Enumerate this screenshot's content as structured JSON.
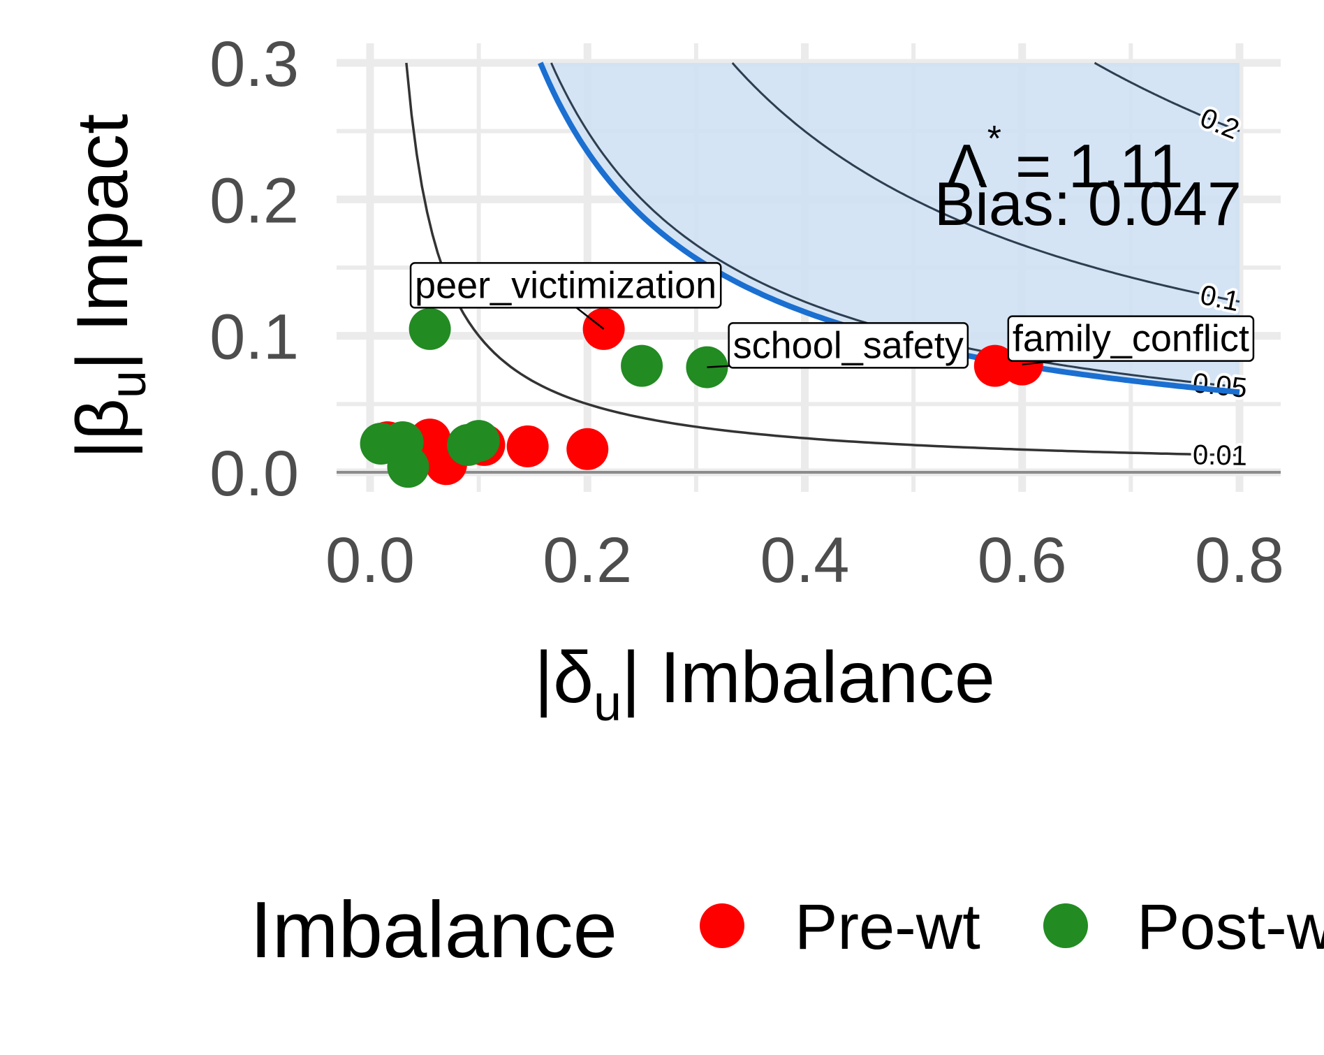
{
  "chart_data": {
    "type": "scatter",
    "xlim": [
      0,
      0.8
    ],
    "ylim": [
      0,
      0.3
    ],
    "x_ticks": [
      "0.0",
      "0.2",
      "0.4",
      "0.6",
      "0.8"
    ],
    "y_ticks": [
      "0.0",
      "0.1",
      "0.2",
      "0.3"
    ],
    "xlabel": {
      "delim": "|",
      "symbol": "δ",
      "sub": "u",
      "text": "Imbalance"
    },
    "ylabel": {
      "delim": "|",
      "symbol": "β",
      "sub": "u",
      "text": "Impact"
    },
    "grid": true,
    "legend": {
      "title": "Imbalance",
      "position": "bottom",
      "entries": [
        {
          "label": "Pre-wt",
          "color": "#ff0000"
        },
        {
          "label": "Post-w",
          "color": "#228b22"
        }
      ]
    },
    "contours": [
      {
        "level": 0.01,
        "label": "0.01",
        "color": "#333333"
      },
      {
        "level": 0.05,
        "label": "0.05",
        "color": "#2c3e50"
      },
      {
        "level": 0.1,
        "label": "0.1",
        "color": "#2c3e50"
      },
      {
        "level": 0.2,
        "label": "0.2",
        "color": "#2c3e50"
      }
    ],
    "threshold": {
      "bias": 0.047,
      "color": "#1a6fd1",
      "fill": "#cfe1f4"
    },
    "annotations": {
      "lambda_symbol": "Λ",
      "lambda_sup": "*",
      "lambda_value": "= 1.11",
      "bias_text": "Bias: 0.047"
    },
    "series": [
      {
        "name": "Pre-wt",
        "color": "#ff0000",
        "points": [
          {
            "x": 0.016,
            "y": 0.022
          },
          {
            "x": 0.055,
            "y": 0.024
          },
          {
            "x": 0.07,
            "y": 0.006
          },
          {
            "x": 0.105,
            "y": 0.02
          },
          {
            "x": 0.145,
            "y": 0.019
          },
          {
            "x": 0.2,
            "y": 0.017
          },
          {
            "x": 0.215,
            "y": 0.105
          },
          {
            "x": 0.575,
            "y": 0.078
          },
          {
            "x": 0.6,
            "y": 0.079
          }
        ]
      },
      {
        "name": "Post-w",
        "color": "#228b22",
        "points": [
          {
            "x": 0.01,
            "y": 0.021
          },
          {
            "x": 0.03,
            "y": 0.022
          },
          {
            "x": 0.035,
            "y": 0.004
          },
          {
            "x": 0.055,
            "y": 0.105
          },
          {
            "x": 0.09,
            "y": 0.02
          },
          {
            "x": 0.1,
            "y": 0.023
          },
          {
            "x": 0.25,
            "y": 0.078
          },
          {
            "x": 0.31,
            "y": 0.077
          }
        ]
      }
    ],
    "callouts": [
      {
        "text": "peer_victimization",
        "point_x": 0.215,
        "point_y": 0.105,
        "label_x": 0.18,
        "label_y": 0.137
      },
      {
        "text": "school_safety",
        "point_x": 0.31,
        "point_y": 0.077,
        "label_x": 0.44,
        "label_y": 0.093
      },
      {
        "text": "family_conflict",
        "point_x": 0.6,
        "point_y": 0.079,
        "label_x": 0.7,
        "label_y": 0.098
      }
    ]
  }
}
